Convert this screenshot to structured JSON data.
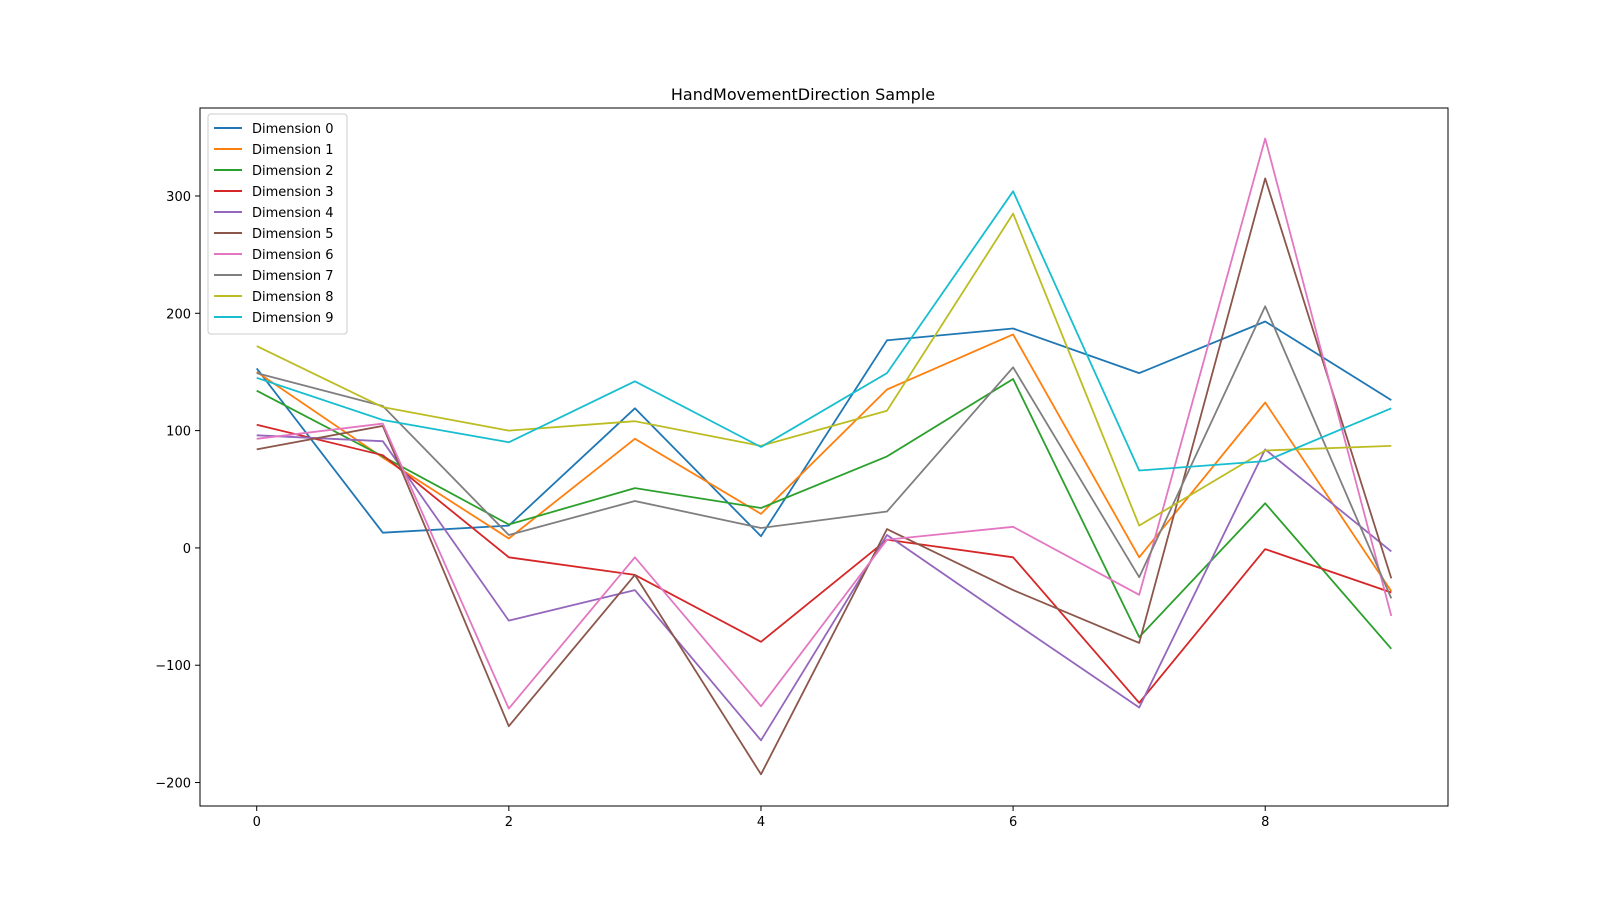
{
  "chart_data": {
    "type": "line",
    "title": "HandMovementDirection Sample",
    "xlabel": "",
    "ylabel": "",
    "x": [
      0,
      1,
      2,
      3,
      4,
      5,
      6,
      7,
      8,
      9
    ],
    "xlim": [
      -0.45,
      9.45
    ],
    "ylim": [
      -220,
      375
    ],
    "xticks": [
      0,
      2,
      4,
      6,
      8
    ],
    "yticks": [
      -200,
      -100,
      0,
      100,
      200,
      300
    ],
    "ytick_labels": [
      "−200",
      "−100",
      "0",
      "100",
      "200",
      "300"
    ],
    "grid": false,
    "legend_position": "upper-left",
    "series": [
      {
        "name": "Dimension 0",
        "color": "#1f77b4",
        "values": [
          153,
          13,
          19,
          119,
          10,
          177,
          187,
          149,
          193,
          126
        ]
      },
      {
        "name": "Dimension 1",
        "color": "#ff7f0e",
        "values": [
          150,
          77,
          8,
          93,
          29,
          135,
          182,
          -8,
          124,
          -37
        ]
      },
      {
        "name": "Dimension 2",
        "color": "#2ca02c",
        "values": [
          134,
          78,
          20,
          51,
          34,
          78,
          144,
          -76,
          38,
          -86
        ]
      },
      {
        "name": "Dimension 3",
        "color": "#d62728",
        "values": [
          105,
          79,
          -8,
          -23,
          -80,
          7,
          -8,
          -132,
          -1,
          -38
        ]
      },
      {
        "name": "Dimension 4",
        "color": "#9467bd",
        "values": [
          96,
          91,
          -62,
          -36,
          -164,
          11,
          -63,
          -136,
          84,
          -3
        ]
      },
      {
        "name": "Dimension 5",
        "color": "#8c564b",
        "values": [
          84,
          104,
          -152,
          -23,
          -193,
          16,
          -36,
          -81,
          315,
          -26
        ]
      },
      {
        "name": "Dimension 6",
        "color": "#e377c2",
        "values": [
          93,
          106,
          -137,
          -8,
          -135,
          7,
          18,
          -40,
          349,
          -58
        ]
      },
      {
        "name": "Dimension 7",
        "color": "#7f7f7f",
        "values": [
          149,
          121,
          11,
          40,
          17,
          31,
          154,
          -25,
          206,
          -43
        ]
      },
      {
        "name": "Dimension 8",
        "color": "#bcbd22",
        "values": [
          172,
          120,
          100,
          108,
          87,
          117,
          285,
          19,
          83,
          87
        ]
      },
      {
        "name": "Dimension 9",
        "color": "#17becf",
        "values": [
          145,
          109,
          90,
          142,
          86,
          149,
          304,
          66,
          74,
          119
        ]
      }
    ]
  }
}
